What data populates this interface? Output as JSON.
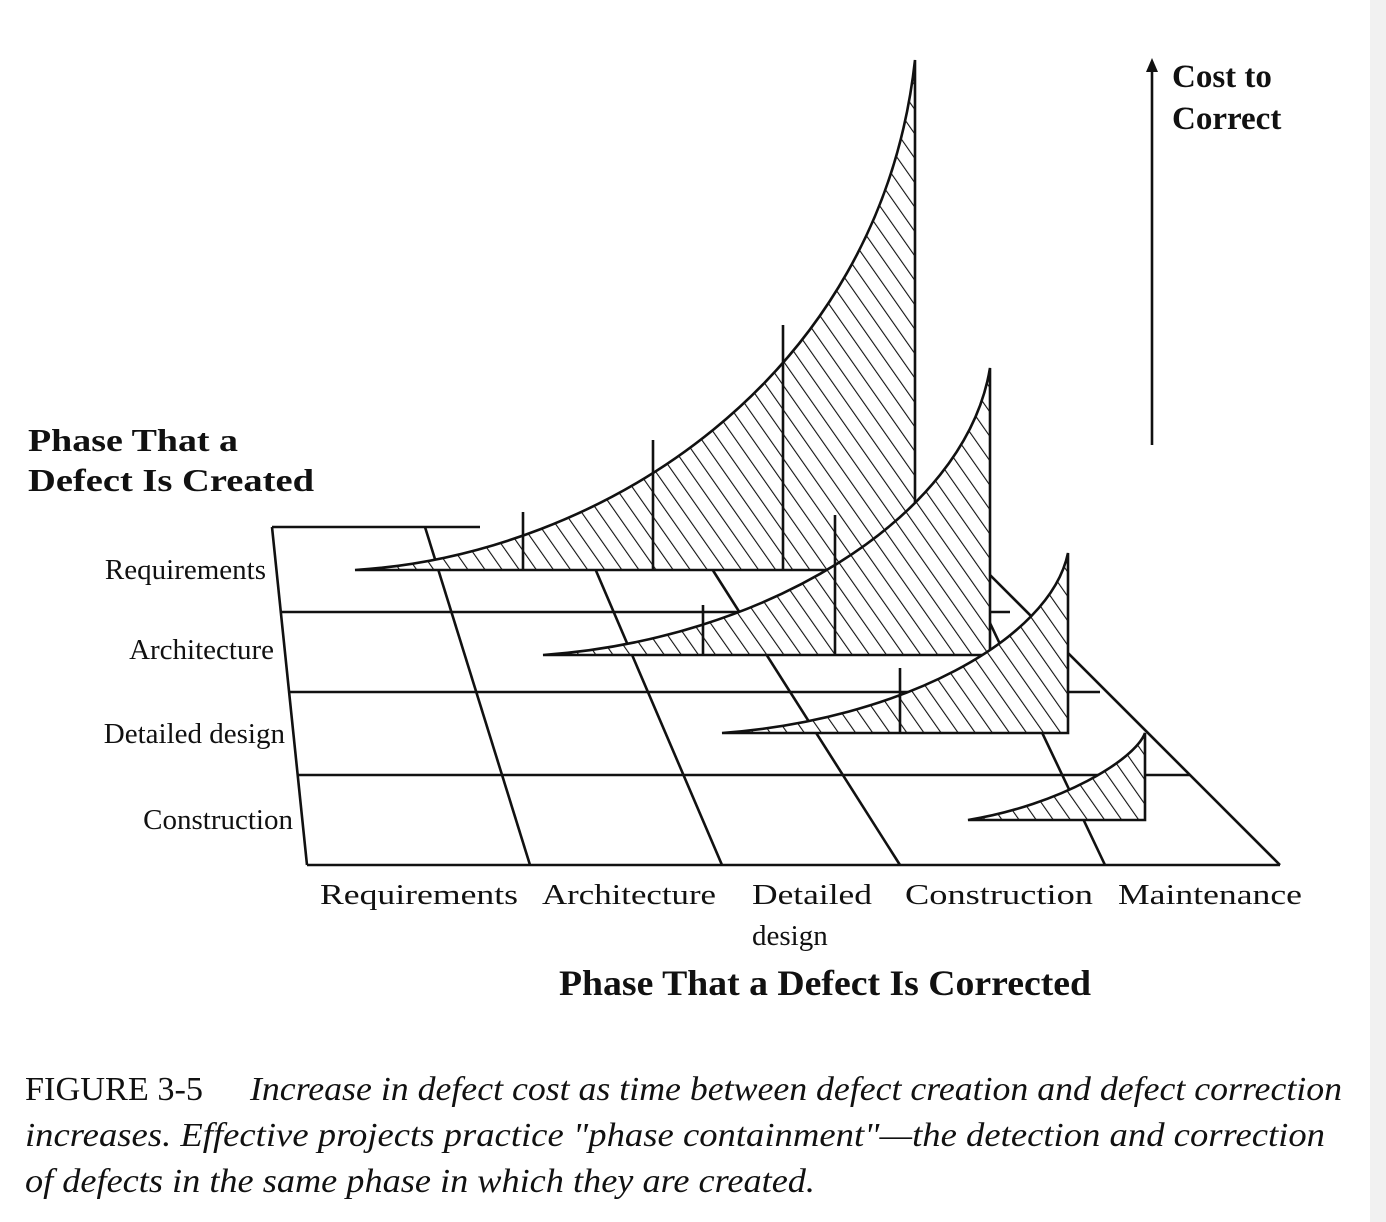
{
  "diagram": {
    "y_axis_title": [
      "Phase That a",
      "Defect Is Created"
    ],
    "rows": [
      "Requirements",
      "Architecture",
      "Detailed design",
      "Construction"
    ],
    "columns": [
      "Requirements",
      "Architecture",
      "Detailed",
      "design",
      "Construction",
      "Maintenance"
    ],
    "x_axis_title": "Phase That a Defect Is Corrected",
    "cost_label": [
      "Cost to",
      "Correct"
    ],
    "cost_arrow_icon": "arrow-up-icon",
    "fill_pattern": "diagonal-hatch",
    "line_color": "#111111"
  },
  "caption": {
    "figure_number": "FIGURE 3-5",
    "lines": [
      "Increase in defect cost as time between defect creation and defect correction",
      "increases. Effective projects practice \"phase containment\"—the detection and correction",
      "of defects in the same phase in which they are created."
    ]
  }
}
